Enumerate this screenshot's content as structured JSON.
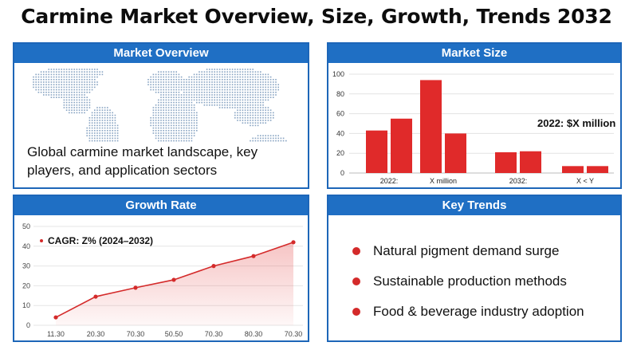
{
  "page": {
    "title": "Carmine Market Overview, Size, Growth, Trends 2032"
  },
  "overview": {
    "header": "Market Overview",
    "description": "Global carmine market landscape, key players, and application sectors"
  },
  "size": {
    "header": "Market Size",
    "annotation": "2022: $X million"
  },
  "growth": {
    "header": "Growth Rate",
    "legend": "CAGR: Z% (2024–2032)"
  },
  "trends": {
    "header": "Key Trends",
    "items": [
      "Natural pigment demand surge",
      "Sustainable production methods",
      "Food & beverage industry adoption"
    ]
  },
  "colors": {
    "accent_blue": "#1f6fc4",
    "accent_red": "#d42a2a"
  },
  "chart_data": [
    {
      "type": "bar",
      "categories": [
        "2022:",
        "X million",
        "2032:",
        "X < Y"
      ],
      "series": [
        {
          "values": [
            43,
            94,
            21,
            7
          ]
        },
        {
          "values": [
            55,
            40,
            22,
            7
          ]
        }
      ],
      "ylim": [
        0,
        100
      ],
      "yticks": [
        0,
        20,
        40,
        60,
        80,
        100
      ],
      "grid": true
    },
    {
      "type": "area",
      "x": [
        "11.30",
        "20.30",
        "70.30",
        "50.50",
        "70.30",
        "80.30",
        "70.30"
      ],
      "values": [
        4,
        14.5,
        19,
        23,
        30,
        35,
        42
      ],
      "ylim": [
        0,
        50
      ],
      "yticks": [
        0,
        10,
        20,
        30,
        40,
        50
      ],
      "grid": true
    }
  ]
}
